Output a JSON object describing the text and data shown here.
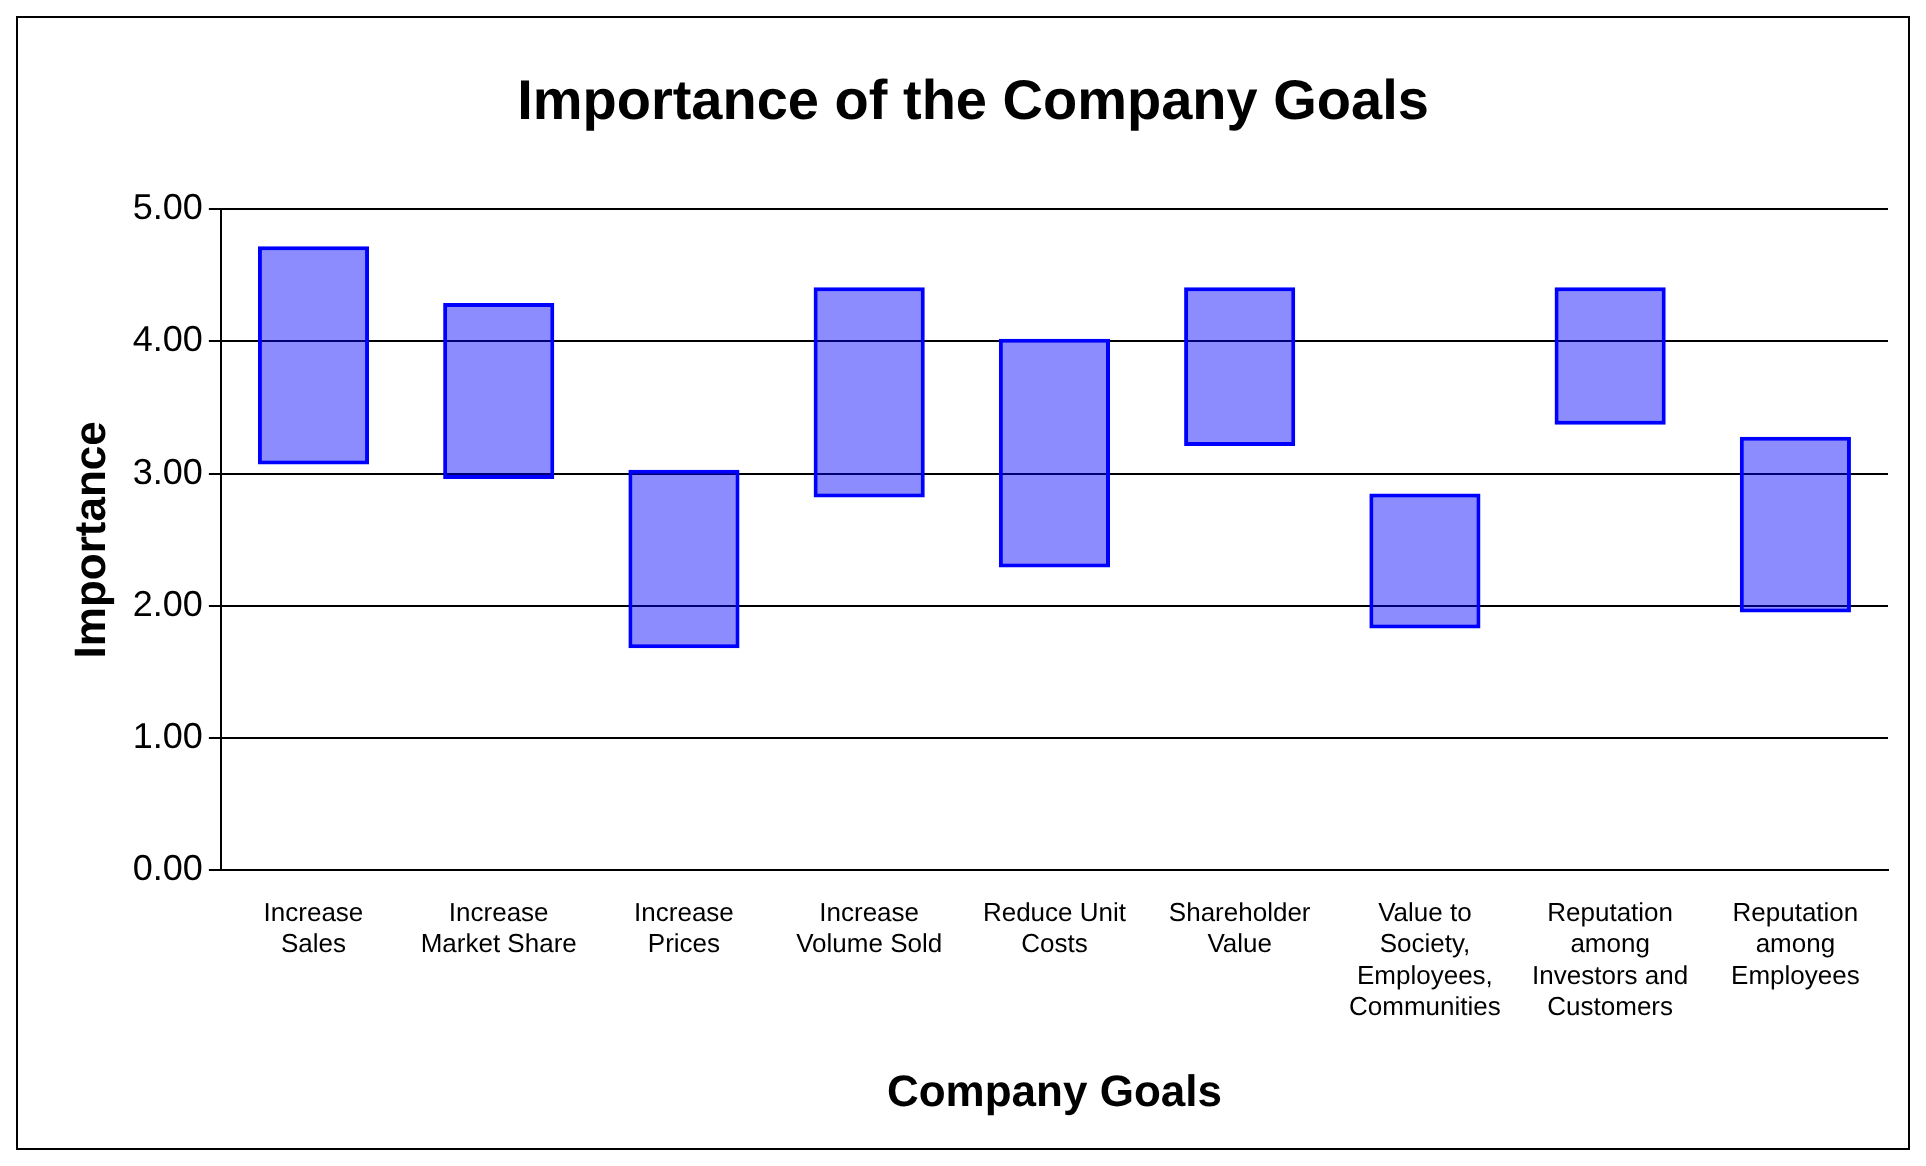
{
  "chart_data": {
    "type": "bar",
    "title": "Importance of the Company Goals",
    "xlabel": "Company Goals",
    "ylabel": "Importance",
    "categories": [
      "Increase Sales",
      "Increase Market Share",
      "Increase Prices",
      "Increase Volume Sold",
      "Reduce Unit Costs",
      "Shareholder Value",
      "Value to Society, Employees, Communities",
      "Reputation among Investors and Customers",
      "Reputation among Employees"
    ],
    "base": [
      3.07,
      2.96,
      1.68,
      2.82,
      2.29,
      3.21,
      1.83,
      3.37,
      1.95
    ],
    "values": [
      1.65,
      1.33,
      1.35,
      1.59,
      1.73,
      1.2,
      1.02,
      1.04,
      1.33
    ],
    "color": "#0000ff",
    "ylim": [
      0,
      5
    ],
    "yticks": [
      {
        "value": 0,
        "label": "0.00"
      },
      {
        "value": 1,
        "label": "1.00"
      },
      {
        "value": 2,
        "label": "2.00"
      },
      {
        "value": 3,
        "label": "3.00"
      },
      {
        "value": 4,
        "label": "4.00"
      },
      {
        "value": 5,
        "label": "5.00"
      }
    ],
    "grid": "y"
  }
}
